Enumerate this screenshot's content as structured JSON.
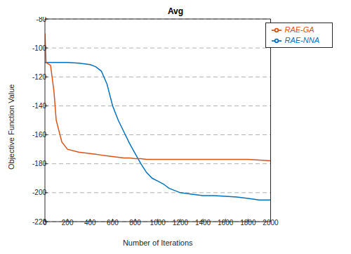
{
  "chart_data": {
    "type": "line",
    "title": "Avg",
    "x_label": "Number of Iterations",
    "y_label": "Objective Function Value",
    "x": [
      0,
      10,
      50,
      80,
      100,
      150,
      200,
      300,
      350,
      400,
      450,
      500,
      550,
      600,
      650,
      700,
      750,
      800,
      850,
      900,
      950,
      1000,
      1050,
      1100,
      1200,
      1300,
      1400,
      1500,
      1600,
      1700,
      1800,
      1900,
      2000
    ],
    "series": [
      {
        "name": "RAE-NNA",
        "color": "#0072BD",
        "values": [
          -110,
          -110,
          -110,
          -110,
          -110,
          -110,
          -110,
          -110.5,
          -111,
          -111.5,
          -113,
          -116,
          -125,
          -140,
          -150,
          -158,
          -166,
          -173,
          -180,
          -186,
          -190,
          -192,
          -194,
          -197,
          -200,
          -201,
          -202,
          -202,
          -202.5,
          -203,
          -204,
          -205,
          -205
        ]
      },
      {
        "name": "RAE-GA",
        "color": "#D95319",
        "values": [
          -90,
          -110,
          -112,
          -130,
          -150,
          -165,
          -170,
          -172,
          -172.5,
          -173,
          -173.5,
          -174,
          -174.5,
          -175,
          -175.5,
          -176,
          -176,
          -176.5,
          -176.5,
          -177,
          -177,
          -177,
          -177,
          -177,
          -177,
          -177,
          -177,
          -177,
          -177,
          -177,
          -177,
          -177.5,
          -178
        ]
      }
    ],
    "xlim": [
      0,
      2000
    ],
    "ylim": [
      -220,
      -80
    ],
    "xticks": [
      0,
      200,
      400,
      600,
      800,
      1000,
      1200,
      1400,
      1600,
      1800,
      2000
    ],
    "yticks": [
      -220,
      -200,
      -180,
      -160,
      -140,
      -120,
      -100,
      -80
    ],
    "grid": true,
    "legend": "top-right"
  }
}
